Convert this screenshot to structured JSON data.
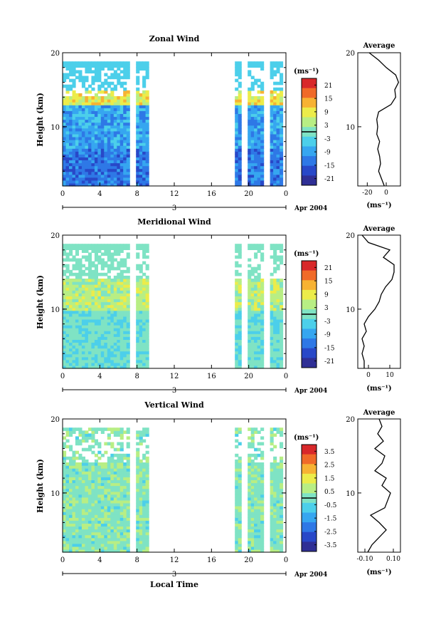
{
  "figure": {
    "xlabel": "Local Time",
    "date_label": "Apr 2004",
    "day_label": "3",
    "ylabel": "Height (km)",
    "unit_label": "(ms⁻¹)"
  },
  "chart_data": [
    {
      "type": "heatmap",
      "title": "Zonal Wind",
      "xlabel": "",
      "ylabel": "Height (km)",
      "x_ticks": [
        "0",
        "4",
        "8",
        "12",
        "16",
        "20",
        "0"
      ],
      "x_range": [
        0,
        24
      ],
      "y_ticks": [
        "20",
        "10"
      ],
      "y_range": [
        2,
        20
      ],
      "colorbar": {
        "label": "(ms⁻¹)",
        "ticks": [
          "21",
          "15",
          "9",
          "3",
          "-3",
          "-9",
          "-15",
          "-21"
        ],
        "range": [
          -24,
          24
        ]
      },
      "data_windows_hours": [
        [
          0,
          9.2
        ],
        [
          18.6,
          23.5
        ]
      ],
      "data_gaps_hours": [
        7.7,
        19.4,
        21.8
      ],
      "colors": [
        "#2f2f95",
        "#2848c8",
        "#2e78e6",
        "#36a6f0",
        "#4ccfea",
        "#7fe3c4",
        "#b8ee84",
        "#ecec4a",
        "#f7b233",
        "#f06a28",
        "#d8282a"
      ],
      "average_profile": {
        "title": "Average",
        "xlabel": "(ms⁻¹)",
        "x_ticks": [
          "-20",
          "0"
        ],
        "y_ticks": [
          "20",
          "10"
        ],
        "x_range": [
          -30,
          15
        ],
        "height_km": [
          2.0,
          3.0,
          4.0,
          5.0,
          6.0,
          7.0,
          8.0,
          9.0,
          10.0,
          11.0,
          12.0,
          13.0,
          14.0,
          15.0,
          16.0,
          17.0,
          18.0,
          19.0,
          20.0
        ],
        "values": [
          -2,
          -5,
          -8,
          -6,
          -7,
          -9,
          -7,
          -10,
          -9,
          -10,
          -8,
          5,
          10,
          9,
          13,
          10,
          0,
          -8,
          -18
        ]
      }
    },
    {
      "type": "heatmap",
      "title": "Meridional Wind",
      "xlabel": "",
      "ylabel": "Height (km)",
      "x_ticks": [
        "0",
        "4",
        "8",
        "12",
        "16",
        "20",
        "0"
      ],
      "x_range": [
        0,
        24
      ],
      "y_ticks": [
        "20",
        "10"
      ],
      "y_range": [
        2,
        20
      ],
      "colorbar": {
        "label": "(ms⁻¹)",
        "ticks": [
          "21",
          "15",
          "9",
          "3",
          "-3",
          "-9",
          "-15",
          "-21"
        ],
        "range": [
          -24,
          24
        ]
      },
      "data_windows_hours": [
        [
          0,
          9.2
        ],
        [
          18.6,
          23.5
        ]
      ],
      "data_gaps_hours": [
        7.7,
        19.4,
        21.8
      ],
      "colors": [
        "#2f2f95",
        "#2848c8",
        "#2e78e6",
        "#36a6f0",
        "#4ccfea",
        "#7fe3c4",
        "#b8ee84",
        "#ecec4a",
        "#f7b233",
        "#f06a28",
        "#d8282a"
      ],
      "average_profile": {
        "title": "Average",
        "xlabel": "(ms⁻¹)",
        "x_ticks": [
          "0",
          "10"
        ],
        "y_ticks": [
          "20",
          "10"
        ],
        "x_range": [
          -5,
          15
        ],
        "height_km": [
          2.0,
          3.0,
          4.0,
          5.0,
          6.0,
          7.0,
          8.0,
          9.0,
          10.0,
          11.0,
          12.0,
          13.0,
          14.0,
          15.0,
          16.0,
          17.0,
          18.0,
          19.0,
          20.0
        ],
        "values": [
          -2,
          -2,
          -3,
          -2,
          -3,
          -1,
          -2,
          0,
          3,
          5,
          6,
          8,
          11,
          12,
          12,
          7,
          10,
          0,
          -3
        ]
      }
    },
    {
      "type": "heatmap",
      "title": "Vertical Wind",
      "xlabel": "Local Time",
      "ylabel": "Height (km)",
      "x_ticks": [
        "0",
        "4",
        "8",
        "12",
        "16",
        "20",
        "0"
      ],
      "x_range": [
        0,
        24
      ],
      "y_ticks": [
        "20",
        "10"
      ],
      "y_range": [
        2,
        20
      ],
      "colorbar": {
        "label": "(ms⁻¹)",
        "ticks": [
          "3.5",
          "2.5",
          "1.5",
          "0.5",
          "-0.5",
          "-1.5",
          "-2.5",
          "-3.5"
        ],
        "range": [
          -4,
          4
        ]
      },
      "data_windows_hours": [
        [
          0,
          9.2
        ],
        [
          18.6,
          23.5
        ]
      ],
      "data_gaps_hours": [
        7.7,
        19.4,
        21.8
      ],
      "colors": [
        "#2f2f95",
        "#2848c8",
        "#2e78e6",
        "#36a6f0",
        "#4ccfea",
        "#7fe3c4",
        "#b8ee84",
        "#ecec4a",
        "#f7b233",
        "#f06a28",
        "#d8282a"
      ],
      "average_profile": {
        "title": "Average",
        "xlabel": "(ms⁻¹)",
        "x_ticks": [
          "-0.10",
          "0.10"
        ],
        "y_ticks": [
          "20",
          "10"
        ],
        "x_range": [
          -0.15,
          0.15
        ],
        "height_km": [
          2.0,
          3.0,
          4.0,
          5.0,
          6.0,
          7.0,
          8.0,
          9.0,
          10.0,
          11.0,
          12.0,
          13.0,
          14.0,
          15.0,
          16.0,
          17.0,
          18.0,
          19.0,
          20.0
        ],
        "values": [
          -0.08,
          -0.05,
          0.0,
          0.05,
          0.0,
          -0.06,
          0.04,
          0.06,
          0.08,
          0.02,
          0.05,
          -0.03,
          0.02,
          0.04,
          -0.03,
          0.03,
          -0.01,
          0.02,
          0.0
        ]
      }
    }
  ]
}
